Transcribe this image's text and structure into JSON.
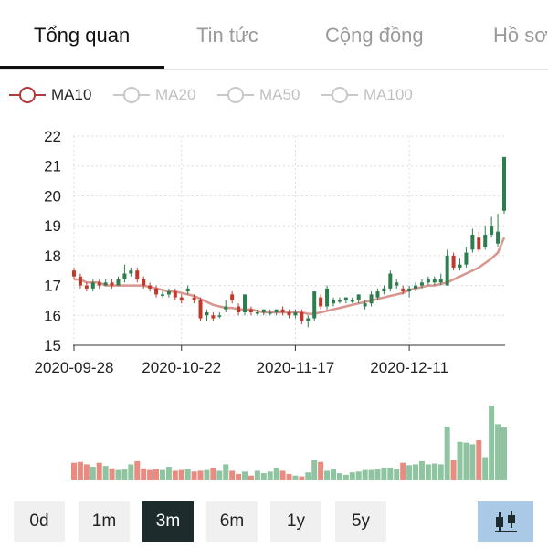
{
  "tabs": [
    {
      "label": "Tổng quan",
      "active": true
    },
    {
      "label": "Tin tức",
      "active": false
    },
    {
      "label": "Cộng đồng",
      "active": false
    },
    {
      "label": "Hồ sơ",
      "active": false
    }
  ],
  "legend": [
    {
      "label": "MA10",
      "active": true,
      "color": "#b03a3a"
    },
    {
      "label": "MA20",
      "active": false,
      "color": "#c8c8c8"
    },
    {
      "label": "MA50",
      "active": false,
      "color": "#c8c8c8"
    },
    {
      "label": "MA100",
      "active": false,
      "color": "#c8c8c8"
    }
  ],
  "periods": [
    {
      "label": "0d",
      "active": false
    },
    {
      "label": "1m",
      "active": false
    },
    {
      "label": "3m",
      "active": true
    },
    {
      "label": "6m",
      "active": false
    },
    {
      "label": "1y",
      "active": false
    },
    {
      "label": "5y",
      "active": false
    }
  ],
  "chart_button_icon": "candlestick-icon",
  "colors": {
    "up": "#2e7d4f",
    "down": "#c0392b",
    "ma": "#d9958f",
    "vol_up": "#8fc4a0",
    "vol_down": "#e88c82",
    "button": "#a9c9e6"
  },
  "chart_data": {
    "type": "candlestick",
    "y_ticks": [
      "22",
      "21",
      "20",
      "19",
      "18",
      "17",
      "16",
      "15"
    ],
    "ylim": [
      15,
      22
    ],
    "x_tick_labels": [
      "2020-09-28",
      "2020-10-22",
      "2020-11-17",
      "2020-12-11"
    ],
    "x_tick_indices": [
      0,
      17,
      35,
      53
    ],
    "grid": true,
    "candles": [
      [
        17.5,
        17.3,
        17.6,
        17.2
      ],
      [
        17.3,
        17.0,
        17.4,
        16.9
      ],
      [
        17.0,
        16.9,
        17.1,
        16.8
      ],
      [
        16.9,
        17.1,
        17.2,
        16.8
      ],
      [
        17.1,
        17.0,
        17.2,
        16.9
      ],
      [
        17.0,
        17.1,
        17.2,
        17.0
      ],
      [
        17.1,
        17.0,
        17.2,
        16.9
      ],
      [
        17.0,
        17.2,
        17.3,
        17.0
      ],
      [
        17.2,
        17.4,
        17.7,
        17.1
      ],
      [
        17.4,
        17.5,
        17.6,
        17.3
      ],
      [
        17.5,
        17.2,
        17.6,
        17.1
      ],
      [
        17.2,
        17.0,
        17.3,
        16.9
      ],
      [
        17.0,
        16.9,
        17.1,
        16.8
      ],
      [
        16.9,
        16.7,
        17.0,
        16.6
      ],
      [
        16.7,
        16.7,
        16.8,
        16.6
      ],
      [
        16.7,
        16.8,
        16.9,
        16.6
      ],
      [
        16.8,
        16.6,
        16.9,
        16.5
      ],
      [
        16.6,
        16.5,
        16.7,
        16.4
      ],
      [
        16.8,
        16.9,
        17.0,
        16.7
      ],
      [
        16.6,
        16.5,
        16.7,
        16.4
      ],
      [
        16.5,
        15.9,
        16.6,
        15.8
      ],
      [
        16.0,
        16.1,
        16.2,
        15.8
      ],
      [
        16.0,
        15.9,
        16.1,
        15.8
      ],
      [
        16.0,
        16.0,
        16.1,
        15.9
      ],
      [
        16.2,
        16.3,
        16.5,
        16.1
      ],
      [
        16.7,
        16.5,
        16.8,
        16.4
      ],
      [
        16.3,
        16.1,
        16.4,
        16.0
      ],
      [
        16.1,
        16.7,
        16.7,
        16.0
      ],
      [
        16.2,
        16.1,
        16.3,
        16.0
      ],
      [
        16.1,
        16.1,
        16.2,
        16.0
      ],
      [
        16.1,
        16.2,
        16.2,
        16.0
      ],
      [
        16.1,
        16.1,
        16.2,
        16.0
      ],
      [
        16.1,
        16.2,
        16.2,
        16.0
      ],
      [
        16.2,
        16.1,
        16.3,
        16.0
      ],
      [
        16.1,
        16.0,
        16.2,
        15.9
      ],
      [
        16.0,
        16.1,
        16.2,
        15.9
      ],
      [
        16.1,
        15.8,
        16.2,
        15.7
      ],
      [
        15.8,
        15.9,
        16.0,
        15.6
      ],
      [
        15.9,
        16.8,
        16.8,
        15.8
      ],
      [
        16.6,
        16.3,
        16.7,
        16.2
      ],
      [
        16.3,
        16.9,
        17.0,
        16.2
      ],
      [
        16.4,
        16.5,
        16.6,
        16.3
      ],
      [
        16.5,
        16.5,
        16.6,
        16.4
      ],
      [
        16.5,
        16.6,
        16.6,
        16.4
      ],
      [
        16.5,
        16.5,
        16.6,
        16.4
      ],
      [
        16.5,
        16.7,
        16.7,
        16.4
      ],
      [
        16.3,
        16.4,
        16.5,
        16.2
      ],
      [
        16.4,
        16.7,
        16.8,
        16.3
      ],
      [
        16.6,
        16.8,
        16.9,
        16.5
      ],
      [
        16.8,
        16.9,
        17.0,
        16.7
      ],
      [
        16.9,
        17.4,
        17.5,
        16.8
      ],
      [
        17.0,
        17.1,
        17.2,
        16.9
      ],
      [
        16.9,
        16.8,
        17.0,
        16.7
      ],
      [
        16.8,
        16.9,
        17.0,
        16.6
      ],
      [
        16.9,
        17.0,
        17.1,
        16.8
      ],
      [
        17.0,
        17.1,
        17.2,
        16.9
      ],
      [
        17.1,
        17.2,
        17.3,
        17.0
      ],
      [
        17.1,
        17.2,
        17.3,
        17.0
      ],
      [
        17.1,
        17.2,
        17.4,
        17.0
      ],
      [
        17.0,
        18.0,
        18.2,
        17.0
      ],
      [
        18.0,
        17.6,
        18.1,
        17.5
      ],
      [
        17.6,
        17.7,
        17.9,
        17.5
      ],
      [
        17.7,
        18.1,
        18.3,
        17.6
      ],
      [
        18.2,
        18.7,
        18.9,
        18.1
      ],
      [
        18.6,
        18.2,
        18.8,
        18.1
      ],
      [
        18.3,
        18.7,
        19.0,
        18.2
      ],
      [
        18.7,
        19.0,
        19.3,
        18.6
      ],
      [
        18.4,
        18.8,
        19.4,
        18.3
      ],
      [
        19.5,
        21.3,
        21.3,
        19.4
      ]
    ],
    "ma10": [
      17.2,
      17.2,
      17.1,
      17.1,
      17.1,
      17.0,
      17.0,
      17.0,
      17.0,
      17.0,
      17.0,
      17.0,
      16.95,
      16.9,
      16.85,
      16.8,
      16.8,
      16.75,
      16.7,
      16.65,
      16.55,
      16.45,
      16.35,
      16.3,
      16.25,
      16.25,
      16.2,
      16.2,
      16.2,
      16.15,
      16.1,
      16.1,
      16.1,
      16.1,
      16.1,
      16.1,
      16.1,
      16.05,
      16.05,
      16.1,
      16.15,
      16.2,
      16.25,
      16.3,
      16.35,
      16.4,
      16.45,
      16.5,
      16.55,
      16.6,
      16.65,
      16.7,
      16.75,
      16.85,
      16.9,
      16.95,
      17.0,
      17.0,
      17.05,
      17.1,
      17.2,
      17.3,
      17.4,
      17.5,
      17.6,
      17.75,
      17.9,
      18.1,
      18.6
    ],
    "volume": [
      0.22,
      0.23,
      0.2,
      0.17,
      0.22,
      0.18,
      0.15,
      0.13,
      0.14,
      0.2,
      0.24,
      0.15,
      0.13,
      0.14,
      0.13,
      0.17,
      0.12,
      0.13,
      0.14,
      0.11,
      0.12,
      0.13,
      0.16,
      0.12,
      0.2,
      0.12,
      0.08,
      0.11,
      0.06,
      0.12,
      0.09,
      0.11,
      0.16,
      0.12,
      0.08,
      0.06,
      0.05,
      0.1,
      0.25,
      0.23,
      0.12,
      0.14,
      0.09,
      0.07,
      0.1,
      0.11,
      0.13,
      0.13,
      0.14,
      0.16,
      0.16,
      0.14,
      0.22,
      0.19,
      0.2,
      0.24,
      0.2,
      0.21,
      0.2,
      0.67,
      0.25,
      0.48,
      0.47,
      0.45,
      0.5,
      0.29,
      0.93,
      0.7,
      0.66
    ]
  }
}
